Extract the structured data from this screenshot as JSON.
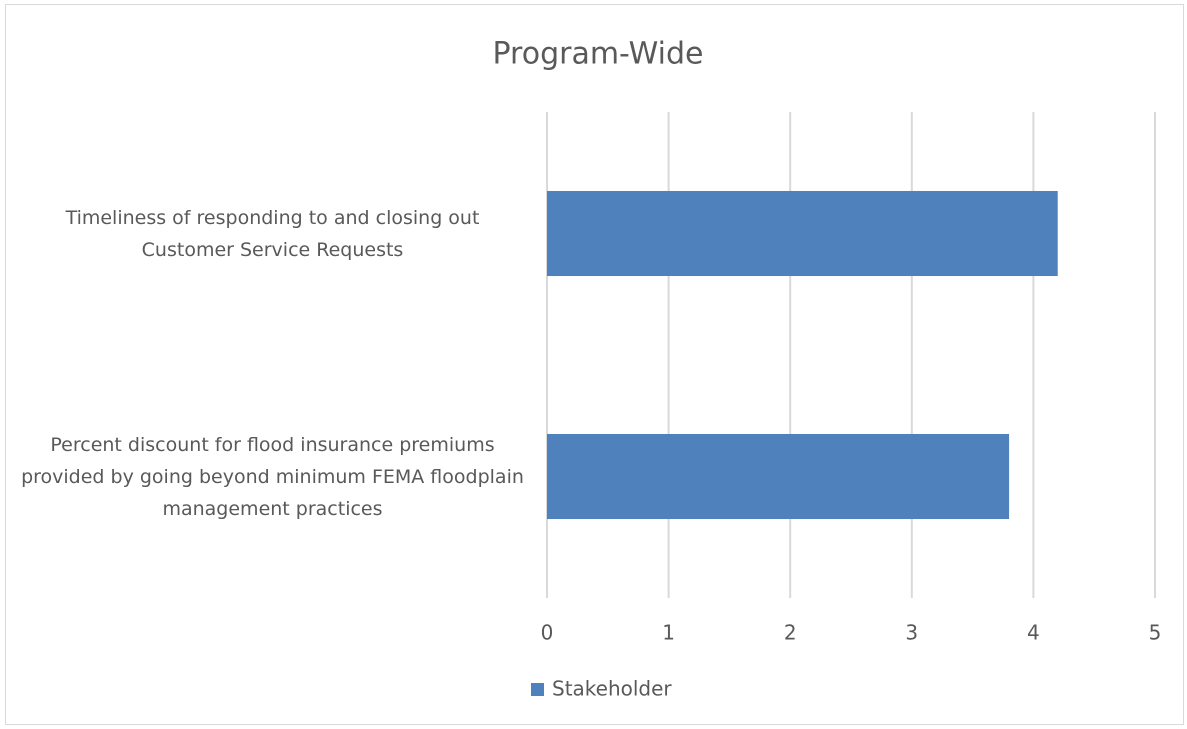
{
  "chart_data": {
    "type": "bar",
    "orientation": "horizontal",
    "title": "Program-Wide",
    "categories": [
      "Timeliness of responding to and closing out Customer Service Requests",
      "Percent discount for flood insurance premiums provided by going beyond minimum FEMA floodplain management practices"
    ],
    "series": [
      {
        "name": "Stakeholder",
        "color": "#4f81bd",
        "values": [
          4.2,
          3.8
        ]
      }
    ],
    "xlim": [
      0,
      5
    ],
    "xticks": [
      0,
      1,
      2,
      3,
      4,
      5
    ],
    "grid": true,
    "legend": "bottom"
  }
}
